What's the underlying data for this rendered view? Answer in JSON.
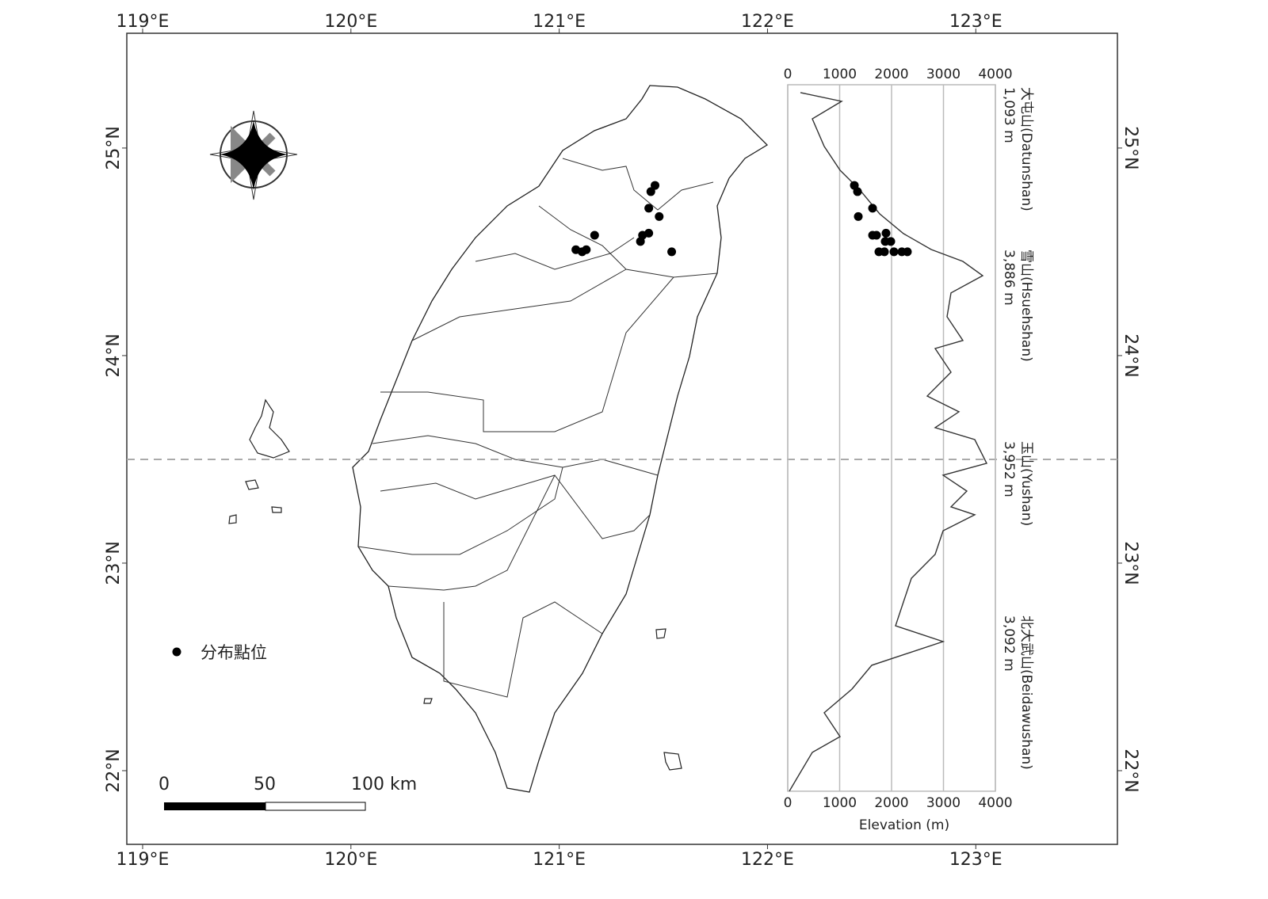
{
  "chart_data": [
    {
      "type": "map",
      "xlim": [
        118.924,
        123.68
      ],
      "ylim": [
        21.645,
        25.553
      ],
      "xticks": [
        {
          "value": 119,
          "label": "119°E"
        },
        {
          "value": 120,
          "label": "120°E"
        },
        {
          "value": 121,
          "label": "121°E"
        },
        {
          "value": 122,
          "label": "122°E"
        },
        {
          "value": 123,
          "label": "123°E"
        }
      ],
      "yticks": [
        {
          "value": 22,
          "label": "22°N"
        },
        {
          "value": 23,
          "label": "23°N"
        },
        {
          "value": 24,
          "label": "24°N"
        },
        {
          "value": 25,
          "label": "25°N"
        }
      ],
      "tropic_lat": 23.5,
      "series": [
        {
          "name": "分布點位",
          "color": "#000000",
          "lon": [
            121.08,
            121.11,
            121.13,
            121.17,
            121.39,
            121.4,
            121.43,
            121.44,
            121.46,
            121.43,
            121.48,
            121.54
          ],
          "lat": [
            24.51,
            24.5,
            24.51,
            24.58,
            24.55,
            24.58,
            24.59,
            24.79,
            24.82,
            24.71,
            24.67,
            24.5
          ]
        }
      ],
      "scale_bar": [
        {
          "value": 0,
          "label": "0"
        },
        {
          "value": 50,
          "label": "50"
        },
        {
          "value": 100,
          "label": "100 km"
        }
      ]
    },
    {
      "type": "profile",
      "xlabel": "Elevation (m)",
      "xlim": [
        0,
        4000
      ],
      "xticks": [
        0,
        1000,
        2000,
        3000,
        4000
      ],
      "ylim": [
        21.901,
        25.305
      ],
      "line": {
        "color": "#333333",
        "elevation": [
          244,
          1038,
          473,
          702,
          1008,
          1389,
          1771,
          2229,
          2763,
          3374,
          3756,
          3145,
          3069,
          3374,
          2840,
          3145,
          2687,
          3298,
          2840,
          3603,
          3832,
          2992,
          3450,
          3145,
          3603,
          2992,
          2840,
          2382,
          2229,
          2076,
          2992,
          1618,
          1237,
          702,
          1008,
          473,
          244,
          31
        ],
        "lat": [
          25.267,
          25.225,
          25.141,
          25.008,
          24.893,
          24.798,
          24.683,
          24.588,
          24.511,
          24.454,
          24.385,
          24.302,
          24.187,
          24.073,
          24.034,
          23.92,
          23.805,
          23.729,
          23.653,
          23.595,
          23.481,
          23.424,
          23.347,
          23.271,
          23.233,
          23.156,
          23.042,
          22.927,
          22.813,
          22.698,
          22.622,
          22.508,
          22.393,
          22.279,
          22.164,
          22.088,
          21.992,
          21.901
        ]
      },
      "points": {
        "color": "#000000",
        "elevation": [
          1283,
          1344,
          1359,
          1634,
          1634,
          1710,
          1893,
          1878,
          1985,
          1756,
          1863,
          2046,
          2198,
          2305
        ],
        "lat": [
          24.82,
          24.79,
          24.67,
          24.71,
          24.58,
          24.58,
          24.59,
          24.55,
          24.55,
          24.5,
          24.5,
          24.5,
          24.5,
          24.5
        ]
      },
      "peaks": {
        "names": [
          "大屯山(Datunshan)",
          "雪山(Hsuehshan)",
          "玉山(Yushan)",
          "北大武山(Beidawushan)"
        ],
        "values": [
          1093,
          3886,
          3952,
          3092
        ],
        "value_labels": [
          "1,093 m",
          "3,886 m",
          "3,952 m",
          "3,092 m"
        ]
      }
    }
  ]
}
